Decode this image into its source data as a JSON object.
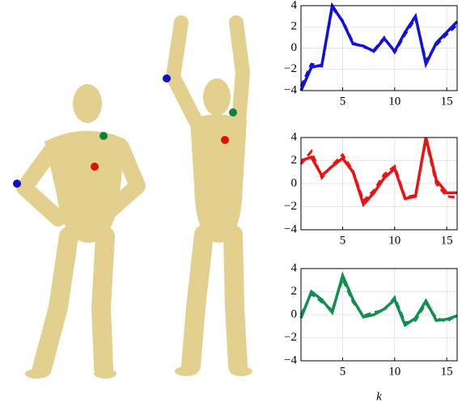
{
  "chart_data": [
    {
      "type": "line",
      "x": [
        1,
        2,
        3,
        4,
        5,
        6,
        7,
        8,
        9,
        10,
        11,
        12,
        13,
        14,
        15,
        16
      ],
      "xlim": [
        1,
        16
      ],
      "xticks": [
        5,
        10,
        15
      ],
      "ylim": [
        -4,
        4
      ],
      "yticks": [
        {
          "value": -4,
          "label": "−4"
        },
        {
          "value": -2,
          "label": "−2"
        },
        0,
        2,
        4
      ],
      "grid": true,
      "series": [
        {
          "color": "#1010e0",
          "style": "solid",
          "values": [
            -4,
            -1.8,
            -1.6,
            4,
            2.5,
            0.4,
            0.2,
            -0.3,
            0.9,
            -0.3,
            1.5,
            3,
            -1.5,
            0.5,
            1.5,
            2.5
          ]
        },
        {
          "color": "#1010e0",
          "style": "dashed",
          "values": [
            -3.6,
            -1.5,
            -1.7,
            3.8,
            2.6,
            0.5,
            0.1,
            -0.2,
            1.0,
            -0.4,
            1.3,
            2.8,
            -1.2,
            0.3,
            1.3,
            2.2
          ]
        }
      ]
    },
    {
      "type": "line",
      "x": [
        1,
        2,
        3,
        4,
        5,
        6,
        7,
        8,
        9,
        10,
        11,
        12,
        13,
        14,
        15,
        16
      ],
      "xlim": [
        1,
        16
      ],
      "xticks": [
        5,
        10,
        15
      ],
      "ylim": [
        -4,
        4
      ],
      "yticks": [
        {
          "value": -4,
          "label": "−4"
        },
        {
          "value": -2,
          "label": "−2"
        },
        0,
        2,
        4
      ],
      "grid": true,
      "series": [
        {
          "color": "#f01010",
          "style": "solid",
          "values": [
            2,
            2.3,
            0.7,
            1.5,
            2.2,
            1,
            -1.8,
            -0.8,
            0.5,
            1.3,
            -1.3,
            -1.1,
            4,
            0.3,
            -0.8,
            -0.8
          ]
        },
        {
          "color": "#f01010",
          "style": "dashed",
          "values": [
            1.7,
            2.8,
            0.5,
            1.6,
            2.5,
            1.1,
            -1.5,
            -0.6,
            0.8,
            1.5,
            -1.2,
            -1.0,
            3.8,
            0,
            -1.1,
            -1.2
          ]
        }
      ]
    },
    {
      "type": "line",
      "x": [
        1,
        2,
        3,
        4,
        5,
        6,
        7,
        8,
        9,
        10,
        11,
        12,
        13,
        14,
        15,
        16
      ],
      "xlim": [
        1,
        16
      ],
      "xticks": [
        5,
        10,
        15
      ],
      "xlabel": "k",
      "ylim": [
        -4,
        4
      ],
      "yticks": [
        {
          "value": -4,
          "label": "−4"
        },
        {
          "value": -2,
          "label": "−2"
        },
        0,
        2,
        4
      ],
      "grid": true,
      "series": [
        {
          "color": "#109050",
          "style": "solid",
          "values": [
            -0.3,
            2,
            1.3,
            0.2,
            3.4,
            1.3,
            -0.2,
            0,
            0.5,
            1.3,
            -0.9,
            -0.3,
            1.2,
            -0.5,
            -0.4,
            -0.1
          ]
        },
        {
          "color": "#109050",
          "style": "dashed",
          "values": [
            0,
            1.8,
            1.1,
            0.4,
            3.1,
            1.1,
            -0.1,
            0.2,
            0.4,
            1.5,
            -0.7,
            -0.5,
            1.0,
            -0.3,
            -0.6,
            0
          ]
        }
      ]
    }
  ]
}
